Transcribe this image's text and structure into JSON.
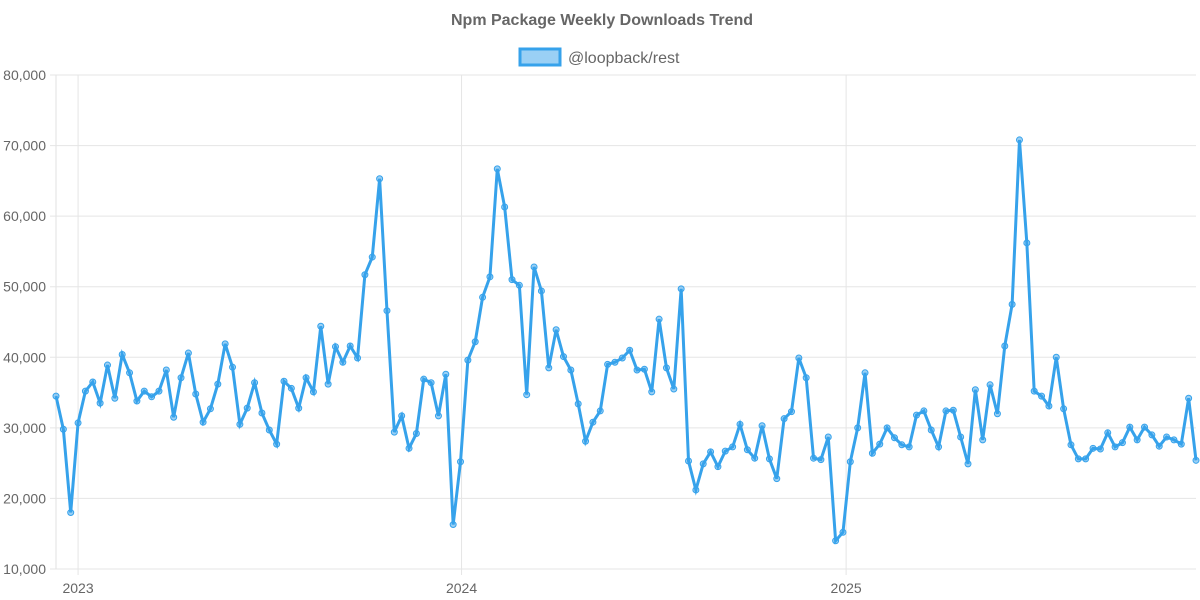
{
  "chart_data": {
    "type": "line",
    "title": "Npm Package Weekly Downloads Trend",
    "xlabel": "",
    "ylabel": "",
    "ylim": [
      10000,
      80000
    ],
    "y_ticks": [
      "10,000",
      "20,000",
      "30,000",
      "40,000",
      "50,000",
      "60,000",
      "70,000",
      "80,000"
    ],
    "x_ticks": [
      {
        "label": "2023",
        "date": "2023-01-01"
      },
      {
        "label": "2024",
        "date": "2024-01-01"
      },
      {
        "label": "2025",
        "date": "2025-01-01"
      }
    ],
    "grid": true,
    "legend_position": "top",
    "colors": {
      "line": "#36a2eb",
      "fill": "#9ad0f5"
    },
    "x": [
      "2022-12-11",
      "2022-12-18",
      "2022-12-25",
      "2023-01-01",
      "2023-01-08",
      "2023-01-15",
      "2023-01-22",
      "2023-01-29",
      "2023-02-05",
      "2023-02-12",
      "2023-02-19",
      "2023-02-26",
      "2023-03-05",
      "2023-03-12",
      "2023-03-19",
      "2023-03-26",
      "2023-04-02",
      "2023-04-09",
      "2023-04-16",
      "2023-04-23",
      "2023-04-30",
      "2023-05-07",
      "2023-05-14",
      "2023-05-21",
      "2023-05-28",
      "2023-06-04",
      "2023-06-11",
      "2023-06-18",
      "2023-06-25",
      "2023-07-02",
      "2023-07-09",
      "2023-07-16",
      "2023-07-23",
      "2023-07-30",
      "2023-08-06",
      "2023-08-13",
      "2023-08-20",
      "2023-08-27",
      "2023-09-03",
      "2023-09-10",
      "2023-09-17",
      "2023-09-24",
      "2023-10-01",
      "2023-10-08",
      "2023-10-15",
      "2023-10-22",
      "2023-10-29",
      "2023-11-05",
      "2023-11-12",
      "2023-11-19",
      "2023-11-26",
      "2023-12-03",
      "2023-12-10",
      "2023-12-17",
      "2023-12-24",
      "2023-12-31",
      "2024-01-07",
      "2024-01-14",
      "2024-01-21",
      "2024-01-28",
      "2024-02-04",
      "2024-02-11",
      "2024-02-18",
      "2024-02-25",
      "2024-03-03",
      "2024-03-10",
      "2024-03-17",
      "2024-03-24",
      "2024-03-31",
      "2024-04-07",
      "2024-04-14",
      "2024-04-21",
      "2024-04-28",
      "2024-05-05",
      "2024-05-12",
      "2024-05-19",
      "2024-05-26",
      "2024-06-02",
      "2024-06-09",
      "2024-06-16",
      "2024-06-23",
      "2024-06-30",
      "2024-07-07",
      "2024-07-14",
      "2024-07-21",
      "2024-07-28",
      "2024-08-04",
      "2024-08-11",
      "2024-08-18",
      "2024-08-25",
      "2024-09-01",
      "2024-09-08",
      "2024-09-15",
      "2024-09-22",
      "2024-09-29",
      "2024-10-06",
      "2024-10-13",
      "2024-10-20",
      "2024-10-27",
      "2024-11-03",
      "2024-11-10",
      "2024-11-17",
      "2024-11-24",
      "2024-12-01",
      "2024-12-08",
      "2024-12-15",
      "2024-12-22",
      "2024-12-29",
      "2025-01-05",
      "2025-01-12",
      "2025-01-19",
      "2025-01-26",
      "2025-02-02",
      "2025-02-09",
      "2025-02-16",
      "2025-02-23",
      "2025-03-02",
      "2025-03-09",
      "2025-03-16",
      "2025-03-23",
      "2025-03-30",
      "2025-04-06",
      "2025-04-13",
      "2025-04-20",
      "2025-04-27",
      "2025-05-04",
      "2025-05-11",
      "2025-05-18",
      "2025-05-25",
      "2025-06-01",
      "2025-06-08",
      "2025-06-15",
      "2025-06-22",
      "2025-06-29",
      "2025-07-06",
      "2025-07-13",
      "2025-07-20",
      "2025-07-27",
      "2025-08-03",
      "2025-08-10",
      "2025-08-17",
      "2025-08-24",
      "2025-08-31",
      "2025-09-07",
      "2025-09-14",
      "2025-09-21",
      "2025-09-28",
      "2025-10-05",
      "2025-10-12",
      "2025-10-19",
      "2025-10-26",
      "2025-11-02",
      "2025-11-09",
      "2025-11-16",
      "2025-11-23",
      "2025-11-30"
    ],
    "series": [
      {
        "name": "@loopback/rest",
        "values": [
          34500,
          29800,
          18000,
          30700,
          35200,
          36500,
          33500,
          38900,
          34200,
          40400,
          37800,
          33800,
          35200,
          34400,
          35200,
          38200,
          31500,
          37100,
          40600,
          34800,
          30800,
          32700,
          36200,
          41900,
          38600,
          30500,
          32800,
          36400,
          32100,
          29700,
          27700,
          36600,
          35600,
          32800,
          37100,
          35100,
          44400,
          36200,
          41500,
          39300,
          41600,
          39900,
          51700,
          54200,
          65300,
          46600,
          29400,
          31700,
          27100,
          29200,
          36900,
          36400,
          31700,
          37600,
          16300,
          25200,
          39600,
          42200,
          48500,
          51400,
          66700,
          61300,
          51000,
          50200,
          34700,
          52800,
          49400,
          38500,
          43900,
          40100,
          38200,
          33400,
          28100,
          30800,
          32400,
          39000,
          39300,
          39900,
          41000,
          38200,
          38300,
          35100,
          45400,
          38500,
          35500,
          49700,
          25300,
          21200,
          24900,
          26600,
          24500,
          26700,
          27300,
          30500,
          26900,
          25700,
          30300,
          25600,
          22800,
          31300,
          32300,
          39900,
          37100,
          25700,
          25500,
          28700,
          14000,
          15200,
          25200,
          30000,
          37800,
          26400,
          27700,
          30000,
          28600,
          27600,
          27300,
          31800,
          32400,
          29700,
          27300,
          32400,
          32500,
          28700,
          24900,
          35400,
          28300,
          36100,
          32000,
          41600,
          47500,
          70800,
          56200,
          35200,
          34500,
          33100,
          40000,
          32700,
          27600,
          25600,
          25600,
          27100,
          27000,
          29300,
          27300,
          27900,
          30100,
          28300,
          30100,
          29000,
          27400,
          28700,
          28300,
          27700,
          34200,
          25400
        ]
      }
    ]
  }
}
